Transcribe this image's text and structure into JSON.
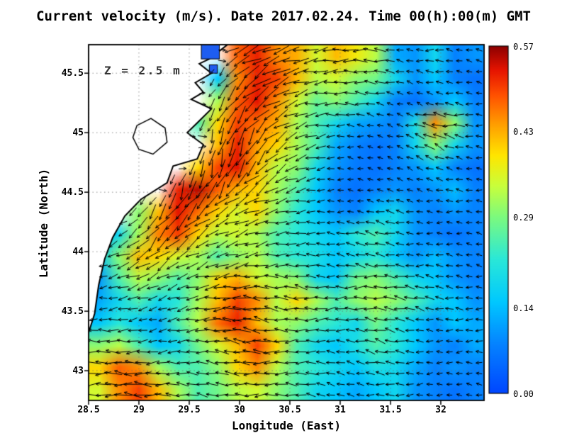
{
  "chart_data": {
    "type": "heatmap",
    "subtype": "velocity-field-with-quiver-arrows",
    "title": "Current velocity (m/s). Date 2017.02.24. Time 00(h):00(m) GMT",
    "annotation": "Z = 2.5 m",
    "xlabel": "Longitude (East)",
    "ylabel": "Latitude (North)",
    "units": "m/s",
    "x_range": [
      28.5,
      32.43
    ],
    "y_range": [
      42.75,
      45.74
    ],
    "x_tick_labels": [
      "28.5",
      "29",
      "29.5",
      "30",
      "30.5",
      "31",
      "31.5",
      "32"
    ],
    "y_tick_labels": [
      "45.5",
      "45",
      "44.5",
      "44",
      "43.5",
      "43"
    ],
    "x_tick_values": [
      28.5,
      29,
      29.5,
      30,
      30.5,
      31,
      31.5,
      32
    ],
    "y_tick_values": [
      45.5,
      45,
      44.5,
      44,
      43.5,
      43
    ],
    "colorbar": {
      "min": 0.0,
      "max": 0.57,
      "tick_labels": [
        "0.57",
        "0.43",
        "0.29",
        "0.14",
        "0.00"
      ]
    },
    "colormap_stops": [
      [
        0.0,
        "#0046ff"
      ],
      [
        0.08,
        "#0582ff"
      ],
      [
        0.15,
        "#00c8ff"
      ],
      [
        0.22,
        "#2ae8d8"
      ],
      [
        0.29,
        "#7dfa7d"
      ],
      [
        0.34,
        "#c8ff3c"
      ],
      [
        0.39,
        "#ffe600"
      ],
      [
        0.44,
        "#ffa000"
      ],
      [
        0.49,
        "#ff5000"
      ],
      [
        0.53,
        "#e61400"
      ],
      [
        0.57,
        "#8c0000"
      ]
    ],
    "colors": {
      "land": "#ffffff",
      "coastline": "#000000",
      "arrows": "#000000",
      "background": "#ffffff",
      "grid_dots": "#6e6e6e",
      "lake_fill": "#1e5df0"
    },
    "grid": {
      "nx": 20,
      "ny": 16,
      "land_value": -1,
      "magnitude": [
        [
          -1,
          -1,
          -1,
          -1,
          -1,
          -1,
          -1,
          0.48,
          0.52,
          0.45,
          0.43,
          0.35,
          0.42,
          0.38,
          0.33,
          0.12,
          0.1,
          0.18,
          0.08,
          0.1
        ],
        [
          -1,
          -1,
          -1,
          -1,
          -1,
          -1,
          0.15,
          0.45,
          0.52,
          0.5,
          0.42,
          0.33,
          0.35,
          0.3,
          0.28,
          0.18,
          0.1,
          0.15,
          0.08,
          0.06
        ],
        [
          -1,
          -1,
          -1,
          -1,
          -1,
          -1,
          0.32,
          0.48,
          0.53,
          0.45,
          0.35,
          0.27,
          0.3,
          0.25,
          0.18,
          0.08,
          0.06,
          0.1,
          0.15,
          0.08
        ],
        [
          -1,
          -1,
          -1,
          -1,
          -1,
          0.25,
          0.4,
          0.5,
          0.47,
          0.43,
          0.32,
          0.25,
          0.18,
          0.12,
          0.1,
          0.08,
          0.2,
          0.45,
          0.3,
          0.1
        ],
        [
          -1,
          -1,
          -1,
          -1,
          -1,
          -1,
          0.42,
          0.52,
          0.44,
          0.4,
          0.32,
          0.25,
          0.12,
          0.08,
          0.06,
          0.08,
          0.18,
          0.3,
          0.18,
          0.1
        ],
        [
          -1,
          -1,
          -1,
          -1,
          -1,
          0.4,
          0.5,
          0.53,
          0.42,
          0.33,
          0.3,
          0.18,
          0.1,
          0.07,
          0.06,
          0.08,
          0.1,
          0.15,
          0.08,
          0.06
        ],
        [
          -1,
          -1,
          -1,
          -1,
          0.52,
          0.55,
          0.48,
          0.42,
          0.4,
          0.32,
          0.25,
          0.15,
          0.08,
          0.06,
          0.08,
          0.1,
          0.08,
          0.1,
          0.14,
          0.08
        ],
        [
          -1,
          -1,
          0.3,
          0.42,
          0.53,
          0.47,
          0.4,
          0.35,
          0.4,
          0.3,
          0.22,
          0.15,
          0.1,
          0.08,
          0.15,
          0.18,
          0.1,
          0.08,
          0.1,
          0.08
        ],
        [
          0.12,
          0.18,
          0.32,
          0.46,
          0.5,
          0.4,
          0.33,
          0.35,
          0.32,
          0.25,
          0.22,
          0.18,
          0.15,
          0.22,
          0.25,
          0.18,
          0.1,
          0.08,
          0.06,
          0.08
        ],
        [
          0.15,
          0.3,
          0.42,
          0.4,
          0.35,
          0.32,
          0.25,
          0.3,
          0.33,
          0.25,
          0.22,
          0.2,
          0.15,
          0.18,
          0.22,
          0.15,
          0.1,
          0.14,
          0.1,
          0.08
        ],
        [
          0.1,
          0.25,
          0.33,
          0.3,
          0.25,
          0.3,
          0.4,
          0.43,
          0.35,
          0.32,
          0.3,
          0.18,
          0.15,
          0.28,
          0.3,
          0.25,
          0.18,
          0.15,
          0.1,
          0.08
        ],
        [
          0.12,
          0.18,
          0.25,
          0.18,
          0.22,
          0.32,
          0.42,
          0.5,
          0.45,
          0.33,
          0.4,
          0.32,
          0.25,
          0.3,
          0.33,
          0.3,
          0.25,
          0.18,
          0.15,
          0.1
        ],
        [
          0.15,
          0.22,
          0.15,
          0.12,
          0.25,
          0.33,
          0.47,
          0.52,
          0.42,
          0.32,
          0.3,
          0.25,
          0.22,
          0.18,
          0.28,
          0.22,
          0.15,
          0.1,
          0.15,
          0.12
        ],
        [
          0.3,
          0.33,
          0.25,
          0.15,
          0.18,
          0.28,
          0.35,
          0.42,
          0.5,
          0.4,
          0.25,
          0.18,
          0.15,
          0.2,
          0.25,
          0.22,
          0.15,
          0.1,
          0.08,
          0.12
        ],
        [
          0.4,
          0.48,
          0.45,
          0.32,
          0.25,
          0.25,
          0.3,
          0.4,
          0.45,
          0.33,
          0.25,
          0.22,
          0.18,
          0.15,
          0.2,
          0.18,
          0.12,
          0.08,
          0.1,
          0.08
        ],
        [
          0.35,
          0.45,
          0.5,
          0.42,
          0.32,
          0.25,
          0.28,
          0.33,
          0.35,
          0.3,
          0.25,
          0.18,
          0.15,
          0.12,
          0.15,
          0.18,
          0.1,
          0.08,
          0.06,
          0.08
        ]
      ],
      "direction_deg": [
        [
          0,
          0,
          0,
          0,
          0,
          0,
          0,
          210,
          205,
          200,
          195,
          190,
          185,
          180,
          175,
          170,
          175,
          180,
          170,
          165
        ],
        [
          0,
          0,
          0,
          0,
          0,
          0,
          230,
          225,
          215,
          205,
          195,
          190,
          185,
          180,
          175,
          170,
          165,
          170,
          175,
          170
        ],
        [
          0,
          0,
          0,
          0,
          0,
          0,
          240,
          230,
          220,
          210,
          200,
          190,
          180,
          175,
          170,
          165,
          160,
          165,
          170,
          175
        ],
        [
          0,
          0,
          0,
          0,
          0,
          250,
          245,
          235,
          225,
          210,
          200,
          190,
          180,
          170,
          165,
          160,
          165,
          170,
          175,
          180
        ],
        [
          0,
          0,
          0,
          0,
          0,
          0,
          255,
          250,
          240,
          220,
          205,
          195,
          185,
          175,
          170,
          165,
          160,
          155,
          165,
          170
        ],
        [
          0,
          0,
          0,
          0,
          0,
          260,
          255,
          245,
          230,
          215,
          200,
          190,
          180,
          170,
          165,
          160,
          155,
          160,
          165,
          170
        ],
        [
          0,
          0,
          0,
          0,
          250,
          245,
          240,
          230,
          220,
          210,
          200,
          190,
          180,
          175,
          170,
          165,
          160,
          165,
          170,
          175
        ],
        [
          0,
          0,
          235,
          240,
          235,
          230,
          220,
          210,
          200,
          195,
          190,
          185,
          180,
          175,
          170,
          165,
          170,
          175,
          180,
          175
        ],
        [
          200,
          210,
          220,
          230,
          225,
          215,
          205,
          200,
          195,
          190,
          185,
          180,
          175,
          170,
          165,
          170,
          175,
          180,
          175,
          170
        ],
        [
          195,
          200,
          210,
          215,
          210,
          205,
          200,
          195,
          190,
          185,
          180,
          175,
          170,
          165,
          170,
          175,
          180,
          175,
          170,
          165
        ],
        [
          190,
          195,
          200,
          205,
          200,
          195,
          190,
          185,
          180,
          175,
          170,
          175,
          180,
          185,
          180,
          175,
          170,
          165,
          170,
          175
        ],
        [
          185,
          190,
          195,
          200,
          195,
          190,
          185,
          180,
          175,
          170,
          175,
          180,
          185,
          180,
          175,
          170,
          165,
          170,
          175,
          180
        ],
        [
          180,
          185,
          190,
          195,
          190,
          185,
          180,
          175,
          170,
          175,
          180,
          185,
          180,
          175,
          170,
          165,
          170,
          175,
          180,
          185
        ],
        [
          175,
          180,
          185,
          190,
          185,
          180,
          175,
          170,
          175,
          180,
          185,
          180,
          175,
          170,
          165,
          170,
          175,
          180,
          185,
          180
        ],
        [
          180,
          175,
          180,
          185,
          180,
          175,
          170,
          175,
          180,
          185,
          180,
          175,
          170,
          165,
          170,
          175,
          180,
          185,
          180,
          175
        ],
        [
          185,
          180,
          175,
          180,
          175,
          170,
          175,
          180,
          185,
          180,
          175,
          170,
          165,
          170,
          175,
          180,
          185,
          180,
          175,
          170
        ]
      ]
    },
    "land_polygon": [
      [
        28.5,
        45.74
      ],
      [
        29.88,
        45.74
      ],
      [
        29.7,
        45.62
      ],
      [
        29.6,
        45.58
      ],
      [
        29.72,
        45.5
      ],
      [
        29.56,
        45.42
      ],
      [
        29.64,
        45.34
      ],
      [
        29.52,
        45.28
      ],
      [
        29.72,
        45.2
      ],
      [
        29.6,
        45.1
      ],
      [
        29.48,
        45.0
      ],
      [
        29.64,
        44.9
      ],
      [
        29.58,
        44.78
      ],
      [
        29.34,
        44.72
      ],
      [
        29.28,
        44.58
      ],
      [
        29.02,
        44.44
      ],
      [
        28.86,
        44.3
      ],
      [
        28.74,
        44.12
      ],
      [
        28.66,
        43.94
      ],
      [
        28.6,
        43.72
      ],
      [
        28.56,
        43.48
      ],
      [
        28.5,
        43.32
      ]
    ],
    "coastal_lakes": [
      [
        29.62,
        45.62,
        29.8,
        45.74
      ],
      [
        29.7,
        45.5,
        29.78,
        45.57
      ]
    ],
    "inland_lake_outline": [
      [
        28.98,
        45.06
      ],
      [
        29.12,
        45.12
      ],
      [
        29.26,
        45.04
      ],
      [
        29.28,
        44.92
      ],
      [
        29.14,
        44.82
      ],
      [
        29.0,
        44.86
      ],
      [
        28.94,
        44.96
      ]
    ]
  }
}
